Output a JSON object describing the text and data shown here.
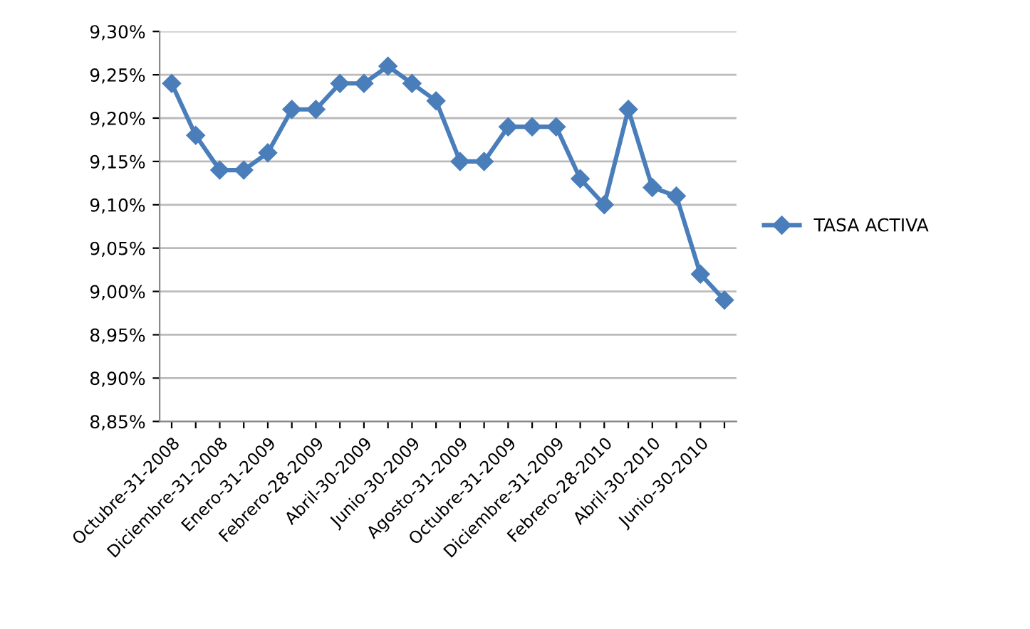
{
  "chart_data": {
    "type": "line",
    "categories": [
      "Octubre-31-2008",
      null,
      "Diciembre-31-2008",
      null,
      "Enero-31-2009",
      null,
      "Febrero-28-2009",
      null,
      "Abril-30-2009",
      null,
      "Junio-30-2009",
      null,
      "Agosto-31-2009",
      null,
      "Octubre-31-2009",
      null,
      "Diciembre-31-2009",
      null,
      "Febrero-28-2010",
      null,
      "Abril-30-2010",
      null,
      "Junio-30-2010",
      null
    ],
    "series": [
      {
        "name": "TASA ACTIVA",
        "color": "#4a7ebb",
        "values": [
          9.24,
          9.18,
          9.14,
          9.14,
          9.16,
          9.21,
          9.21,
          9.24,
          9.24,
          9.26,
          9.24,
          9.22,
          9.15,
          9.15,
          9.19,
          9.19,
          9.19,
          9.13,
          9.1,
          9.21,
          9.12,
          9.11,
          9.02,
          8.99
        ]
      }
    ],
    "ylim": [
      8.85,
      9.3
    ],
    "yticks": [
      {
        "value": 8.85,
        "label": "8,85%"
      },
      {
        "value": 8.9,
        "label": "8,90%"
      },
      {
        "value": 8.95,
        "label": "8,95%"
      },
      {
        "value": 9.0,
        "label": "9,00%"
      },
      {
        "value": 9.05,
        "label": "9,05%"
      },
      {
        "value": 9.1,
        "label": "9,10%"
      },
      {
        "value": 9.15,
        "label": "9,15%"
      },
      {
        "value": 9.2,
        "label": "9,20%"
      },
      {
        "value": 9.25,
        "label": "9,25%"
      },
      {
        "value": 9.3,
        "label": "9,30%"
      }
    ],
    "grid": "y",
    "legend": "right",
    "marker": "diamond",
    "line_style": "solid"
  }
}
